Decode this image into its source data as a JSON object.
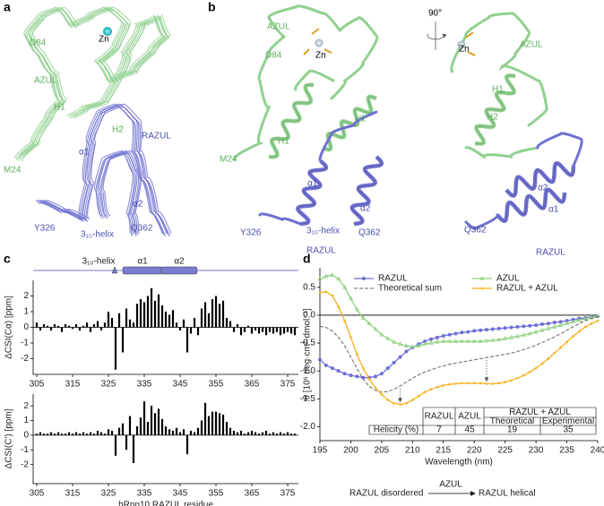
{
  "panels": {
    "a": {
      "letter": "a",
      "labels": [
        "Zn",
        "D84",
        "AZUL",
        "H1",
        "H2",
        "RAZUL",
        "M24",
        "α1",
        "α2",
        "Y326",
        "3₁₀-helix",
        "Q362"
      ]
    },
    "b": {
      "letter": "b",
      "rotation": "90°",
      "left_labels": [
        "Zn",
        "AZUL",
        "D84",
        "H1",
        "H2",
        "M24",
        "α1",
        "α2",
        "Y326",
        "3₁₀-helix",
        "Q362",
        "RAZUL"
      ],
      "right_labels": [
        "Zn",
        "AZUL",
        "H1",
        "H2",
        "α2",
        "α1",
        "Q362",
        "RAZUL"
      ]
    },
    "c": {
      "letter": "c",
      "secondary_structure": [
        "3₁₀-helix",
        "α1",
        "α2"
      ]
    },
    "d": {
      "letter": "d"
    }
  },
  "chart_data": [
    {
      "type": "bar",
      "y_label": "ΔCSI(Cα) [ppm]",
      "color": "#000000",
      "x": [
        305,
        306,
        307,
        308,
        309,
        310,
        311,
        312,
        313,
        314,
        315,
        316,
        317,
        318,
        319,
        320,
        321,
        322,
        323,
        324,
        325,
        326,
        327,
        328,
        329,
        330,
        331,
        332,
        333,
        334,
        335,
        336,
        337,
        338,
        339,
        340,
        341,
        342,
        343,
        344,
        345,
        346,
        347,
        348,
        349,
        350,
        351,
        352,
        353,
        354,
        355,
        356,
        357,
        358,
        359,
        360,
        361,
        362,
        363,
        364,
        365,
        366,
        367,
        368,
        369,
        370,
        371,
        372,
        373,
        374,
        375,
        376,
        377
      ],
      "values": [
        0.3,
        -0.2,
        0.2,
        0.1,
        -0.2,
        0.2,
        0.1,
        -0.3,
        0.2,
        0.1,
        -0.1,
        0.2,
        -0.2,
        0.1,
        0.3,
        -0.3,
        0.2,
        0.4,
        -0.2,
        0.3,
        1.0,
        0.6,
        -2.7,
        0.9,
        -1.6,
        1.2,
        0.5,
        0.3,
        1.5,
        1.8,
        1.6,
        2.0,
        2.5,
        1.7,
        2.1,
        1.4,
        1.0,
        0.8,
        1.1,
        0.3,
        -0.2,
        0.5,
        -1.6,
        -0.4,
        0.6,
        -0.5,
        1.2,
        1.6,
        0.9,
        1.8,
        2.0,
        1.5,
        1.7,
        0.6,
        0.4,
        -0.3,
        0.2,
        -0.5,
        -0.3,
        0.1,
        -0.4,
        -0.2,
        -0.4,
        -0.3,
        -0.5,
        -0.3,
        -0.4,
        -0.3,
        -0.5,
        -0.4,
        -0.3,
        -0.4,
        -0.5
      ],
      "xlim": [
        304,
        378
      ],
      "xticks": [
        305,
        315,
        325,
        335,
        345,
        355,
        365,
        375
      ],
      "ylim": [
        -3,
        3
      ],
      "yticks": [
        -2,
        -1,
        0,
        1,
        2
      ]
    },
    {
      "type": "bar",
      "y_label": "ΔCSI(C′) [ppm]",
      "x_label": "hRpn10 RAZUL residue",
      "color": "#000000",
      "x": [
        305,
        306,
        307,
        308,
        309,
        310,
        311,
        312,
        313,
        314,
        315,
        316,
        317,
        318,
        319,
        320,
        321,
        322,
        323,
        324,
        325,
        326,
        327,
        328,
        329,
        330,
        331,
        332,
        333,
        334,
        335,
        336,
        337,
        338,
        339,
        340,
        341,
        342,
        343,
        344,
        345,
        346,
        347,
        348,
        349,
        350,
        351,
        352,
        353,
        354,
        355,
        356,
        357,
        358,
        359,
        360,
        361,
        362,
        363,
        364,
        365,
        366,
        367,
        368,
        369,
        370,
        371,
        372,
        373,
        374,
        375,
        376,
        377
      ],
      "values": [
        0.1,
        0.2,
        0.1,
        0.1,
        0.2,
        0.1,
        0.2,
        0.1,
        0.1,
        0.2,
        0.1,
        0.2,
        0.1,
        0.2,
        0.1,
        0.2,
        0.1,
        0.3,
        0.2,
        0.1,
        0.4,
        0.3,
        -1.4,
        0.5,
        0.8,
        -1.0,
        1.3,
        -1.9,
        0.6,
        1.2,
        2.3,
        0.9,
        2.0,
        1.5,
        1.8,
        1.1,
        0.6,
        0.4,
        0.3,
        0.5,
        0.2,
        0.4,
        -1.3,
        0.3,
        0.2,
        0.5,
        1.0,
        2.2,
        1.3,
        1.6,
        1.6,
        1.5,
        1.4,
        0.9,
        0.5,
        0.3,
        0.2,
        0.3,
        0.1,
        0.2,
        0.3,
        0.2,
        0.1,
        0.2,
        0.3,
        0.1,
        0.2,
        0.1,
        0.2,
        0.1,
        0.2,
        0.1,
        0.1
      ],
      "xlim": [
        304,
        378
      ],
      "xticks": [
        305,
        315,
        325,
        335,
        345,
        355,
        365,
        375
      ],
      "ylim": [
        -3.3,
        2.8
      ],
      "yticks": [
        -2,
        -1,
        0,
        1,
        2
      ]
    },
    {
      "type": "line",
      "y_label": "θ [10⁶ deg·cm²·dmol⁻¹]",
      "x_label": "Wavelength (nm)",
      "x": [
        195,
        196,
        197,
        198,
        199,
        200,
        201,
        202,
        203,
        204,
        205,
        206,
        207,
        208,
        209,
        210,
        211,
        212,
        213,
        214,
        215,
        216,
        217,
        218,
        219,
        220,
        221,
        222,
        223,
        224,
        225,
        226,
        227,
        228,
        229,
        230,
        231,
        232,
        233,
        234,
        235,
        236,
        237,
        238,
        239,
        240
      ],
      "series": [
        {
          "name": "RAZUL",
          "color": "#6e6ed8",
          "marker": "circle",
          "dash": false,
          "values": [
            -0.8,
            -0.9,
            -0.95,
            -1.0,
            -1.05,
            -1.08,
            -1.1,
            -1.12,
            -1.12,
            -1.1,
            -1.05,
            -0.95,
            -0.85,
            -0.75,
            -0.65,
            -0.58,
            -0.52,
            -0.47,
            -0.43,
            -0.4,
            -0.37,
            -0.35,
            -0.33,
            -0.31,
            -0.3,
            -0.28,
            -0.27,
            -0.26,
            -0.25,
            -0.24,
            -0.23,
            -0.22,
            -0.21,
            -0.2,
            -0.19,
            -0.18,
            -0.16,
            -0.15,
            -0.13,
            -0.12,
            -0.1,
            -0.08,
            -0.06,
            -0.05,
            -0.03,
            -0.02
          ]
        },
        {
          "name": "AZUL",
          "color": "#8fcf7f",
          "marker": "triangle",
          "dash": false,
          "values": [
            0.65,
            0.7,
            0.72,
            0.65,
            0.5,
            0.3,
            0.1,
            -0.05,
            -0.15,
            -0.25,
            -0.35,
            -0.42,
            -0.48,
            -0.52,
            -0.55,
            -0.57,
            -0.55,
            -0.52,
            -0.5,
            -0.48,
            -0.47,
            -0.47,
            -0.47,
            -0.47,
            -0.47,
            -0.47,
            -0.47,
            -0.46,
            -0.45,
            -0.44,
            -0.42,
            -0.4,
            -0.38,
            -0.36,
            -0.33,
            -0.3,
            -0.27,
            -0.24,
            -0.21,
            -0.18,
            -0.15,
            -0.12,
            -0.09,
            -0.06,
            -0.04,
            -0.02
          ]
        },
        {
          "name": "Theoretical sum",
          "color": "#666666",
          "marker": "none",
          "dash": true,
          "values": [
            -0.2,
            -0.22,
            -0.28,
            -0.4,
            -0.55,
            -0.75,
            -0.95,
            -1.15,
            -1.28,
            -1.35,
            -1.38,
            -1.37,
            -1.33,
            -1.27,
            -1.2,
            -1.13,
            -1.07,
            -1.02,
            -0.98,
            -0.94,
            -0.91,
            -0.88,
            -0.86,
            -0.84,
            -0.82,
            -0.8,
            -0.78,
            -0.76,
            -0.74,
            -0.72,
            -0.7,
            -0.68,
            -0.65,
            -0.62,
            -0.58,
            -0.54,
            -0.49,
            -0.44,
            -0.39,
            -0.33,
            -0.27,
            -0.21,
            -0.15,
            -0.1,
            -0.06,
            -0.03
          ]
        },
        {
          "name": "RAZUL + AZUL",
          "color": "#f5b01a",
          "marker": "dot",
          "dash": false,
          "values": [
            0.4,
            0.42,
            0.35,
            0.15,
            -0.1,
            -0.4,
            -0.7,
            -0.95,
            -1.15,
            -1.3,
            -1.42,
            -1.52,
            -1.58,
            -1.6,
            -1.58,
            -1.52,
            -1.45,
            -1.38,
            -1.33,
            -1.29,
            -1.26,
            -1.24,
            -1.23,
            -1.22,
            -1.22,
            -1.22,
            -1.22,
            -1.23,
            -1.23,
            -1.22,
            -1.2,
            -1.17,
            -1.13,
            -1.08,
            -1.02,
            -0.95,
            -0.87,
            -0.78,
            -0.68,
            -0.58,
            -0.48,
            -0.38,
            -0.29,
            -0.21,
            -0.15,
            -0.1
          ]
        }
      ],
      "xlim": [
        195,
        240
      ],
      "xticks": [
        195,
        200,
        205,
        210,
        215,
        220,
        225,
        230,
        235,
        240
      ],
      "ylim": [
        -2.25,
        0.85
      ],
      "yticks": [
        0.5,
        {
          "value": 0,
          "label": "0.0"
        },
        -0.5,
        {
          "value": -1,
          "label": "-1.0"
        },
        -1.5,
        {
          "value": -2,
          "label": "-2.0"
        }
      ],
      "table": {
        "header": [
          "RAZUL",
          "AZUL",
          "RAZUL + AZUL"
        ],
        "subheader": [
          "Theoretical",
          "Experimental"
        ],
        "row_label": "Helicity (%)",
        "values": [
          7,
          45,
          19,
          35
        ]
      }
    }
  ],
  "scheme": {
    "from": "RAZUL disordered",
    "via": "AZUL",
    "to": "RAZUL helical"
  }
}
